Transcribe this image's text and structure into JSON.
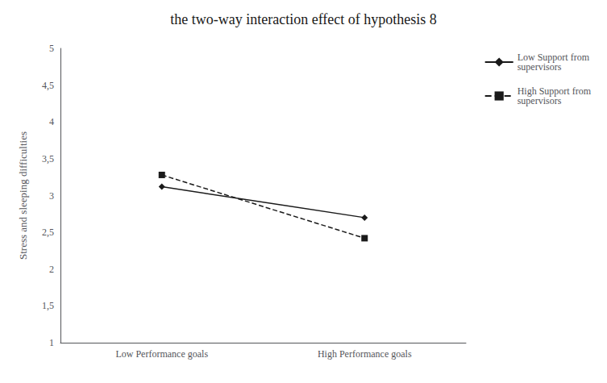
{
  "chart_data": {
    "type": "line",
    "title": "the two-way interaction effect of hypothesis 8",
    "ylabel": "Stress and sleeping difficulties",
    "categories": [
      "Low Performance goals",
      "High Performance goals"
    ],
    "series": [
      {
        "name": "Low Support from\nsupervisors",
        "color": "#1a1a1a",
        "values": [
          3.12,
          2.7
        ],
        "marker": "diamond",
        "line_style": "solid"
      },
      {
        "name": "High Support from\nsupervisors",
        "color": "#1a1a1a",
        "values": [
          3.28,
          2.42
        ],
        "marker": "square",
        "line_style": "dashed"
      }
    ],
    "ylim": [
      1,
      5
    ],
    "yticks": [
      1,
      {
        "value": 1.5,
        "label": "1,5"
      },
      2,
      {
        "value": 2.5,
        "label": "2,5"
      },
      3,
      {
        "value": 3.5,
        "label": "3,5"
      },
      4,
      {
        "value": 4.5,
        "label": "4,5"
      },
      5
    ],
    "grid": false,
    "legend": "right"
  }
}
